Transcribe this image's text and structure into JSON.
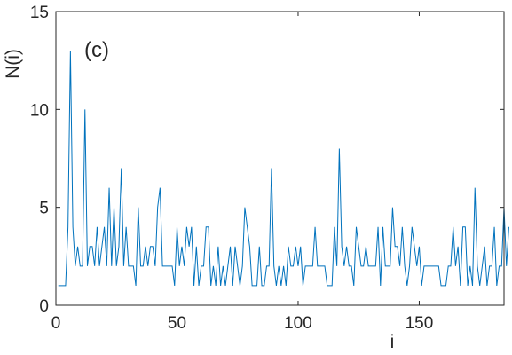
{
  "chart_data": {
    "type": "line",
    "panel_label": "(c)",
    "title": "",
    "xlabel": "i",
    "ylabel": "N(i)",
    "xlim": [
      0,
      185
    ],
    "ylim": [
      0,
      15
    ],
    "xticks": [
      0,
      50,
      100,
      150
    ],
    "yticks": [
      0,
      5,
      10,
      15
    ],
    "grid": false,
    "series": [
      {
        "color": "#0072BD",
        "values": [
          1,
          1,
          1,
          1,
          4,
          13,
          4,
          2,
          3,
          2,
          2,
          10,
          2,
          3,
          3,
          2,
          4,
          2,
          3,
          4,
          2,
          6,
          2,
          5,
          2,
          3,
          7,
          2,
          4,
          2,
          2,
          2,
          1,
          5,
          2,
          2,
          3,
          2,
          3,
          3,
          2,
          5,
          6,
          2,
          2,
          2,
          2,
          2,
          1,
          4,
          2,
          3,
          2,
          4,
          3,
          4,
          1,
          3,
          1,
          2,
          2,
          4,
          4,
          1,
          2,
          1,
          3,
          1,
          2,
          1,
          2,
          3,
          1,
          3,
          2,
          1,
          2,
          5,
          4,
          3,
          1,
          1,
          1,
          3,
          1,
          1,
          2,
          2,
          7,
          2,
          1,
          2,
          1,
          2,
          1,
          3,
          2,
          2,
          3,
          2,
          3,
          1,
          2,
          2,
          2,
          2,
          4,
          2,
          2,
          2,
          2,
          1,
          1,
          1,
          4,
          2,
          8,
          3,
          2,
          3,
          2,
          2,
          1,
          4,
          3,
          2,
          2,
          3,
          2,
          2,
          2,
          2,
          4,
          1,
          4,
          2,
          2,
          2,
          5,
          3,
          3,
          2,
          4,
          2,
          1,
          2,
          4,
          3,
          2,
          3,
          1,
          2,
          2,
          2,
          2,
          2,
          2,
          2,
          1,
          1,
          1,
          2,
          2,
          4,
          2,
          3,
          1,
          4,
          4,
          1,
          2,
          1,
          6,
          2,
          1,
          2,
          3,
          1,
          2,
          2,
          4,
          1,
          2,
          2,
          5,
          2,
          4
        ]
      }
    ]
  }
}
